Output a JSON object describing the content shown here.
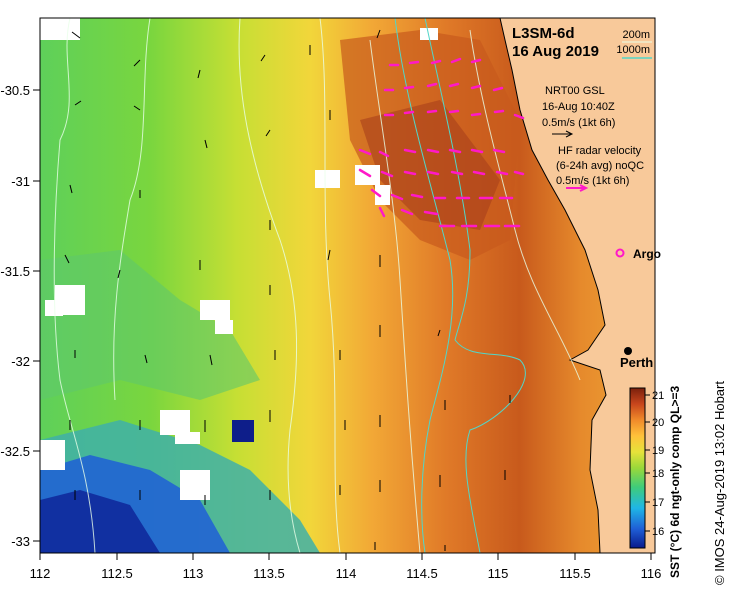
{
  "product": "L3SM-6d",
  "date": "16 Aug 2019",
  "depth_legend": {
    "line1": "200m",
    "line2": "1000m"
  },
  "wind": {
    "title": "NRT00 GSL",
    "time": "16-Aug 10:40Z",
    "scale": "0.5m/s (1kt 6h)"
  },
  "radar": {
    "line1": "HF radar velocity",
    "line2": "(6-24h avg) noQC",
    "scale": "0.5m/s (1kt 6h)"
  },
  "argo_label": "Argo",
  "city_label": "Perth",
  "colorbar": {
    "title": "SST (°C) 6d ngt-only comp QL>=3",
    "ticks": [
      "16",
      "17",
      "18",
      "19",
      "20",
      "21"
    ],
    "colors": [
      "#0a1a8c",
      "#1f5fd6",
      "#1fb6e6",
      "#5fd06a",
      "#c8e23a",
      "#ffe24a",
      "#ffb23a",
      "#f07a2a",
      "#c8461c",
      "#8a2a10"
    ]
  },
  "axes": {
    "x_ticks": [
      "112",
      "112.5",
      "113",
      "113.5",
      "114",
      "114.5",
      "115",
      "115.5",
      "116"
    ],
    "y_ticks": [
      "-30.5",
      "-31",
      "-31.5",
      "-32",
      "-32.5",
      "-33"
    ]
  },
  "credit": "© IMOS 24-Aug-2019 13:02 Hobart",
  "colors": {
    "land": "#f8c99a",
    "isobath_200": "#e8ffe8",
    "isobath_1000": "#52d6c8",
    "radar_arrows": "#ff19c8",
    "wind_arrows": "#000000"
  }
}
